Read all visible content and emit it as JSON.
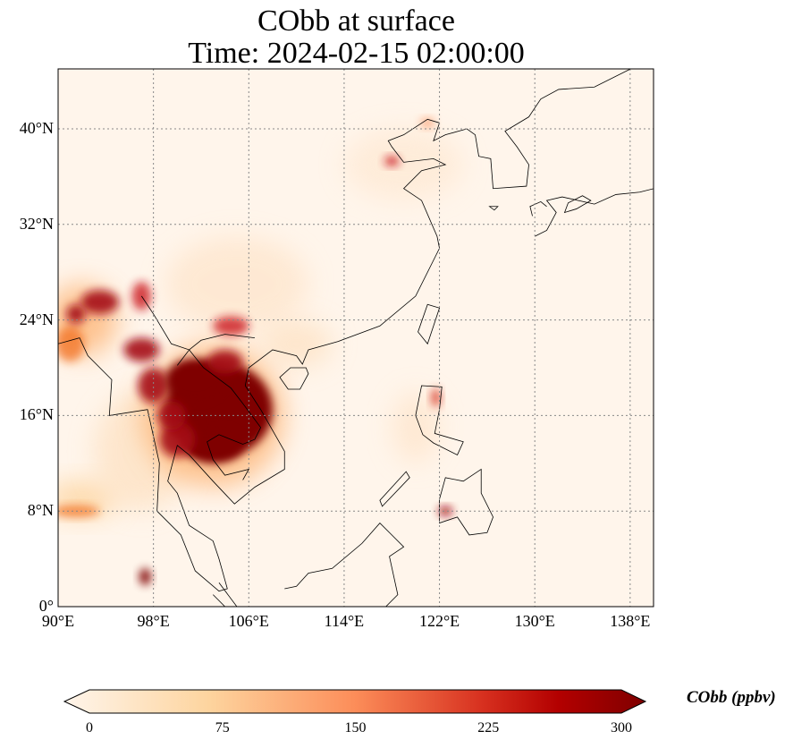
{
  "title": {
    "line1": "CObb at surface",
    "line2": "Time: 2024-02-15 02:00:00"
  },
  "map": {
    "lat_labels": [
      "0°",
      "8°N",
      "16°N",
      "24°N",
      "32°N",
      "40°N"
    ],
    "lat_values": [
      0,
      8,
      16,
      24,
      32,
      40
    ],
    "lon_labels": [
      "90°E",
      "98°E",
      "106°E",
      "114°E",
      "122°E",
      "130°E",
      "138°E"
    ],
    "lon_values": [
      90,
      98,
      106,
      114,
      122,
      130,
      138
    ],
    "extent": {
      "lon": [
        90,
        140
      ],
      "lat": [
        0,
        45
      ]
    }
  },
  "colorbar": {
    "label": "CObb (ppbv)",
    "ticks": [
      "0",
      "75",
      "150",
      "225",
      "300"
    ],
    "range": [
      0,
      300
    ],
    "colormap": [
      "#fff5eb",
      "#fdd49e",
      "#fc8d59",
      "#d7301f",
      "#b30000",
      "#7f0000"
    ]
  }
}
